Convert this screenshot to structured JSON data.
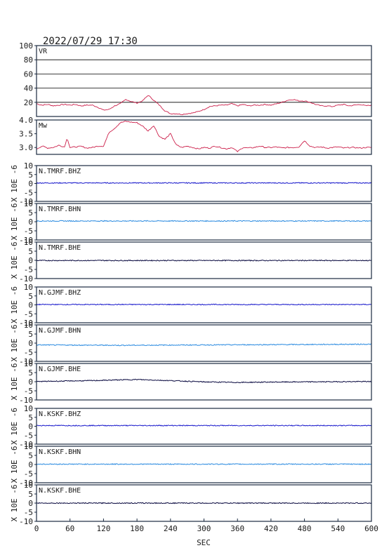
{
  "header": {
    "timestamp": "2022/07/29 17:30"
  },
  "colors": {
    "vr": "#cc1f4a",
    "mw": "#cc1f4a",
    "bhz": "#1a1acc",
    "bhn": "#2a8ae0",
    "bhe": "#0a0a40",
    "grid": "#000000",
    "frame": "#1a2a40"
  },
  "chart_data": {
    "type": "line",
    "x_range": [
      0,
      600
    ],
    "x_ticks": [
      "0",
      "60",
      "120",
      "180",
      "240",
      "300",
      "360",
      "420",
      "480",
      "540",
      "600"
    ],
    "xlabel": "SEC",
    "panels": [
      {
        "id": "vr",
        "label": "VR",
        "ylim": [
          0,
          100
        ],
        "y_ticks": [
          "100",
          "80",
          "60",
          "40",
          "20"
        ],
        "grid": true,
        "color_key": "vr",
        "series": {
          "x": [
            0,
            10,
            20,
            30,
            40,
            50,
            60,
            70,
            80,
            90,
            100,
            110,
            120,
            130,
            140,
            150,
            160,
            170,
            180,
            190,
            200,
            210,
            220,
            230,
            240,
            250,
            260,
            270,
            280,
            290,
            300,
            310,
            320,
            330,
            340,
            350,
            360,
            370,
            380,
            390,
            400,
            410,
            420,
            430,
            440,
            450,
            460,
            470,
            480,
            490,
            500,
            510,
            520,
            530,
            540,
            550,
            560,
            570,
            580,
            590,
            600
          ],
          "y": [
            18,
            16,
            17,
            15,
            16,
            17,
            16,
            17,
            15,
            16,
            16,
            13,
            9,
            10,
            15,
            18,
            24,
            21,
            19,
            22,
            30,
            23,
            16,
            8,
            4,
            4,
            3,
            4,
            5,
            7,
            10,
            14,
            15,
            16,
            16,
            18,
            15,
            17,
            15,
            16,
            16,
            17,
            16,
            18,
            20,
            23,
            24,
            22,
            22,
            20,
            17,
            15,
            15,
            14,
            16,
            17,
            15,
            16,
            17,
            15,
            16
          ]
        }
      },
      {
        "id": "mw",
        "label": "Mw",
        "ylim": [
          2.75,
          4.0
        ],
        "y_ticks": [
          "4.0",
          "3.5",
          "3.0"
        ],
        "grid": false,
        "color_key": "mw",
        "series": {
          "x": [
            0,
            10,
            20,
            30,
            40,
            50,
            55,
            60,
            70,
            80,
            90,
            100,
            110,
            120,
            125,
            130,
            140,
            150,
            160,
            170,
            180,
            190,
            200,
            210,
            220,
            230,
            240,
            250,
            260,
            270,
            280,
            290,
            300,
            310,
            320,
            330,
            340,
            350,
            360,
            370,
            380,
            390,
            400,
            410,
            420,
            430,
            440,
            450,
            460,
            470,
            480,
            490,
            500,
            510,
            520,
            530,
            540,
            550,
            560,
            570,
            580,
            590,
            600
          ],
          "y": [
            2.95,
            3.05,
            2.98,
            3.0,
            3.08,
            3.02,
            3.35,
            3.0,
            3.02,
            3.04,
            2.98,
            3.0,
            3.05,
            3.05,
            3.3,
            3.55,
            3.7,
            3.9,
            3.95,
            3.92,
            3.9,
            3.78,
            3.6,
            3.8,
            3.4,
            3.3,
            3.5,
            3.1,
            3.0,
            3.05,
            3.0,
            2.95,
            3.0,
            2.98,
            3.05,
            3.0,
            2.95,
            3.0,
            2.85,
            3.0,
            2.98,
            3.0,
            3.05,
            3.0,
            3.0,
            3.02,
            2.98,
            3.0,
            3.0,
            3.02,
            3.25,
            3.05,
            3.0,
            3.02,
            2.98,
            3.0,
            3.02,
            2.98,
            3.0,
            3.0,
            2.98,
            3.0,
            3.0
          ]
        }
      },
      {
        "id": "tmrf-bhz",
        "label": "N.TMRF.BHZ",
        "ylim": [
          -10,
          10
        ],
        "y_ticks": [
          "10",
          "5",
          "0",
          "-5",
          "-10"
        ],
        "color_key": "bhz",
        "series": {
          "x": [
            0,
            600
          ],
          "y": [
            0.3,
            0.3
          ]
        }
      },
      {
        "id": "tmrf-bhn",
        "label": "N.TMRF.BHN",
        "ylim": [
          -10,
          10
        ],
        "y_ticks": [
          "10",
          "5",
          "0",
          "-5",
          "-10"
        ],
        "color_key": "bhn",
        "series": {
          "x": [
            0,
            600
          ],
          "y": [
            0.4,
            0.4
          ]
        }
      },
      {
        "id": "tmrf-bhe",
        "label": "N.TMRF.BHE",
        "ylim": [
          -10,
          10
        ],
        "y_ticks": [
          "10",
          "5",
          "0",
          "-5",
          "-10"
        ],
        "color_key": "bhe",
        "series": {
          "x": [
            0,
            600
          ],
          "y": [
            -0.1,
            -0.1
          ]
        }
      },
      {
        "id": "gjmf-bhz",
        "label": "N.GJMF.BHZ",
        "ylim": [
          -10,
          10
        ],
        "y_ticks": [
          "10",
          "5",
          "0",
          "-5",
          "-10"
        ],
        "color_key": "bhz",
        "series": {
          "x": [
            0,
            600
          ],
          "y": [
            0.2,
            0.2
          ]
        }
      },
      {
        "id": "gjmf-bhn",
        "label": "N.GJMF.BHN",
        "ylim": [
          -10,
          10
        ],
        "y_ticks": [
          "10",
          "5",
          "0",
          "-5",
          "-10"
        ],
        "color_key": "bhn",
        "series": {
          "x": [
            0,
            150,
            300,
            450,
            600
          ],
          "y": [
            -1.0,
            -1.2,
            -1.0,
            -0.8,
            -0.6
          ]
        }
      },
      {
        "id": "gjmf-bhe",
        "label": "N.GJMF.BHE",
        "ylim": [
          -10,
          10
        ],
        "y_ticks": [
          "10",
          "5",
          "0",
          "-5",
          "-10"
        ],
        "color_key": "bhe",
        "series": {
          "x": [
            0,
            100,
            150,
            180,
            240,
            300,
            360,
            420,
            600
          ],
          "y": [
            0.1,
            0.6,
            1.0,
            1.2,
            0.6,
            -0.1,
            -0.4,
            -0.2,
            0.1
          ]
        }
      },
      {
        "id": "kskf-bhz",
        "label": "N.KSKF.BHZ",
        "ylim": [
          -10,
          10
        ],
        "y_ticks": [
          "10",
          "5",
          "0",
          "-5",
          "-10"
        ],
        "color_key": "bhz",
        "series": {
          "x": [
            0,
            600
          ],
          "y": [
            0.4,
            0.4
          ]
        }
      },
      {
        "id": "kskf-bhn",
        "label": "N.KSKF.BHN",
        "ylim": [
          -10,
          10
        ],
        "y_ticks": [
          "10",
          "5",
          "0",
          "-5",
          "-10"
        ],
        "color_key": "bhn",
        "series": {
          "x": [
            0,
            600
          ],
          "y": [
            0.2,
            0.2
          ]
        }
      },
      {
        "id": "kskf-bhe",
        "label": "N.KSKF.BHE",
        "ylim": [
          -10,
          10
        ],
        "y_ticks": [
          "10",
          "5",
          "0",
          "-5",
          "-10"
        ],
        "color_key": "bhe",
        "series": {
          "x": [
            0,
            600
          ],
          "y": [
            0.0,
            0.0
          ]
        }
      }
    ],
    "wave_ylabel": "X 10E -6"
  }
}
